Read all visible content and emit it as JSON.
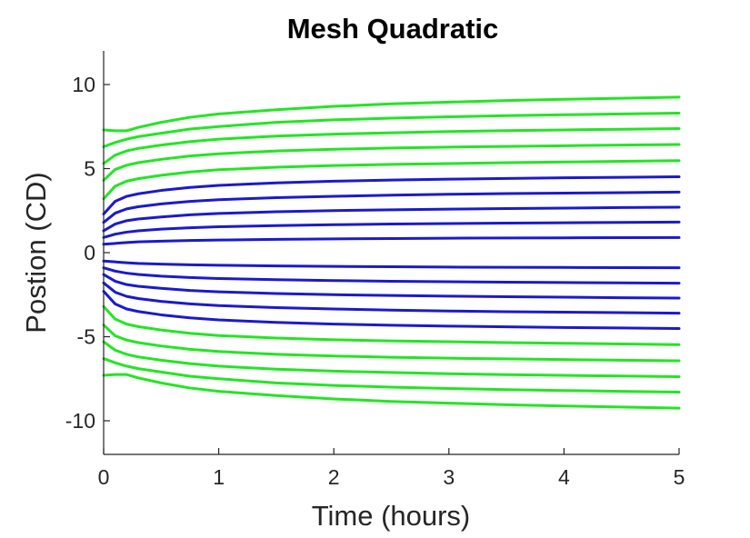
{
  "chart_data": {
    "type": "line",
    "title": "Mesh Quadratic",
    "xlabel": "Time (hours)",
    "ylabel": "Postion (CD)",
    "xlim": [
      0,
      5
    ],
    "ylim": [
      -12,
      12
    ],
    "xticks": [
      0,
      1,
      2,
      3,
      4,
      5
    ],
    "xtick_labels": [
      "0",
      "1",
      "2",
      "3",
      "4",
      "5"
    ],
    "yticks": [
      -10,
      -5,
      0,
      5,
      10
    ],
    "ytick_labels": [
      "-10",
      "-5",
      "0",
      "5",
      "10"
    ],
    "grid": false,
    "legend": "none",
    "colors": {
      "outer": "#22e622",
      "inner": "#1a1acc"
    },
    "x": [
      0,
      0.1,
      0.2,
      0.3,
      0.5,
      0.75,
      1,
      1.5,
      2,
      2.5,
      3,
      3.5,
      4,
      4.5,
      5
    ],
    "series": [
      {
        "group": "outer",
        "values": [
          7.3,
          7.25,
          7.25,
          7.45,
          7.75,
          8.05,
          8.25,
          8.5,
          8.7,
          8.85,
          8.95,
          9.05,
          9.12,
          9.18,
          9.25
        ]
      },
      {
        "group": "outer",
        "values": [
          6.3,
          6.55,
          6.75,
          6.9,
          7.1,
          7.35,
          7.5,
          7.75,
          7.9,
          8.0,
          8.08,
          8.15,
          8.2,
          8.25,
          8.3
        ]
      },
      {
        "group": "outer",
        "values": [
          5.3,
          5.8,
          6.05,
          6.2,
          6.4,
          6.6,
          6.75,
          6.93,
          7.05,
          7.13,
          7.2,
          7.26,
          7.3,
          7.34,
          7.38
        ]
      },
      {
        "group": "outer",
        "values": [
          4.3,
          4.95,
          5.2,
          5.35,
          5.55,
          5.75,
          5.88,
          6.05,
          6.15,
          6.22,
          6.28,
          6.32,
          6.36,
          6.4,
          6.43
        ]
      },
      {
        "group": "outer",
        "values": [
          3.2,
          3.95,
          4.25,
          4.4,
          4.6,
          4.8,
          4.93,
          5.08,
          5.18,
          5.25,
          5.3,
          5.35,
          5.39,
          5.43,
          5.47
        ]
      },
      {
        "group": "inner",
        "values": [
          2.3,
          3.05,
          3.35,
          3.5,
          3.7,
          3.88,
          4.0,
          4.15,
          4.25,
          4.32,
          4.37,
          4.41,
          4.45,
          4.48,
          4.51
        ]
      },
      {
        "group": "inner",
        "values": [
          1.8,
          2.35,
          2.6,
          2.73,
          2.9,
          3.05,
          3.15,
          3.27,
          3.35,
          3.42,
          3.47,
          3.51,
          3.54,
          3.57,
          3.6
        ]
      },
      {
        "group": "inner",
        "values": [
          1.3,
          1.7,
          1.9,
          2.0,
          2.12,
          2.25,
          2.33,
          2.43,
          2.5,
          2.55,
          2.59,
          2.62,
          2.65,
          2.68,
          2.7
        ]
      },
      {
        "group": "inner",
        "values": [
          0.9,
          1.1,
          1.22,
          1.3,
          1.4,
          1.48,
          1.54,
          1.61,
          1.66,
          1.7,
          1.73,
          1.76,
          1.78,
          1.8,
          1.82
        ]
      },
      {
        "group": "inner",
        "values": [
          0.5,
          0.55,
          0.6,
          0.64,
          0.68,
          0.72,
          0.75,
          0.79,
          0.82,
          0.84,
          0.86,
          0.87,
          0.88,
          0.89,
          0.9
        ]
      },
      {
        "group": "inner",
        "values": [
          -0.5,
          -0.55,
          -0.6,
          -0.64,
          -0.68,
          -0.72,
          -0.75,
          -0.79,
          -0.82,
          -0.84,
          -0.86,
          -0.87,
          -0.88,
          -0.89,
          -0.9
        ]
      },
      {
        "group": "inner",
        "values": [
          -0.9,
          -1.1,
          -1.22,
          -1.3,
          -1.4,
          -1.48,
          -1.54,
          -1.61,
          -1.66,
          -1.7,
          -1.73,
          -1.76,
          -1.78,
          -1.8,
          -1.82
        ]
      },
      {
        "group": "inner",
        "values": [
          -1.3,
          -1.7,
          -1.9,
          -2.0,
          -2.12,
          -2.25,
          -2.33,
          -2.43,
          -2.5,
          -2.55,
          -2.59,
          -2.62,
          -2.65,
          -2.68,
          -2.7
        ]
      },
      {
        "group": "inner",
        "values": [
          -1.8,
          -2.35,
          -2.6,
          -2.73,
          -2.9,
          -3.05,
          -3.15,
          -3.27,
          -3.35,
          -3.42,
          -3.47,
          -3.51,
          -3.54,
          -3.57,
          -3.6
        ]
      },
      {
        "group": "inner",
        "values": [
          -2.3,
          -3.05,
          -3.35,
          -3.5,
          -3.7,
          -3.88,
          -4.0,
          -4.15,
          -4.25,
          -4.32,
          -4.37,
          -4.41,
          -4.45,
          -4.48,
          -4.51
        ]
      },
      {
        "group": "outer",
        "values": [
          -3.2,
          -3.95,
          -4.25,
          -4.4,
          -4.6,
          -4.8,
          -4.93,
          -5.08,
          -5.18,
          -5.25,
          -5.3,
          -5.35,
          -5.39,
          -5.43,
          -5.47
        ]
      },
      {
        "group": "outer",
        "values": [
          -4.3,
          -4.95,
          -5.2,
          -5.35,
          -5.55,
          -5.75,
          -5.88,
          -6.05,
          -6.15,
          -6.22,
          -6.28,
          -6.32,
          -6.36,
          -6.4,
          -6.43
        ]
      },
      {
        "group": "outer",
        "values": [
          -5.3,
          -5.8,
          -6.05,
          -6.2,
          -6.4,
          -6.6,
          -6.75,
          -6.93,
          -7.05,
          -7.13,
          -7.2,
          -7.26,
          -7.3,
          -7.34,
          -7.38
        ]
      },
      {
        "group": "outer",
        "values": [
          -6.3,
          -6.55,
          -6.75,
          -6.9,
          -7.1,
          -7.35,
          -7.5,
          -7.75,
          -7.9,
          -8.0,
          -8.08,
          -8.15,
          -8.2,
          -8.25,
          -8.3
        ]
      },
      {
        "group": "outer",
        "values": [
          -7.3,
          -7.25,
          -7.25,
          -7.45,
          -7.75,
          -8.05,
          -8.25,
          -8.5,
          -8.7,
          -8.85,
          -8.95,
          -9.05,
          -9.12,
          -9.18,
          -9.25
        ]
      }
    ]
  }
}
